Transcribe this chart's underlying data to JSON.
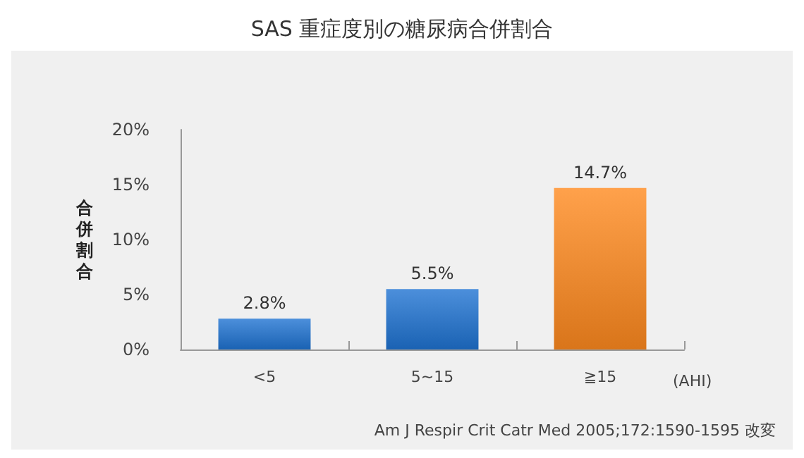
{
  "chart_data": {
    "type": "bar",
    "title": "SAS 重症度別の糖尿病合併割合",
    "ylabel": "合併割合",
    "xlabel": "(AHI)",
    "categories": [
      "<5",
      "5~15",
      "≧15"
    ],
    "values": [
      2.8,
      5.5,
      14.7
    ],
    "colors": [
      "#1f73d2",
      "#1f73d2",
      "#ff8a1e"
    ],
    "value_labels": [
      "2.8%",
      "5.5%",
      "14.7%"
    ],
    "ylim": [
      0,
      20
    ],
    "yticks": [
      {
        "value": 0,
        "label": "0%"
      },
      {
        "value": 5,
        "label": "5%"
      },
      {
        "value": 10,
        "label": "10%"
      },
      {
        "value": 15,
        "label": "15%"
      },
      {
        "value": 20,
        "label": "20%"
      }
    ],
    "grid": false,
    "annotations": [
      "Am J Respir Crit Catr Med 2005;172:1590-1595 改変"
    ]
  }
}
